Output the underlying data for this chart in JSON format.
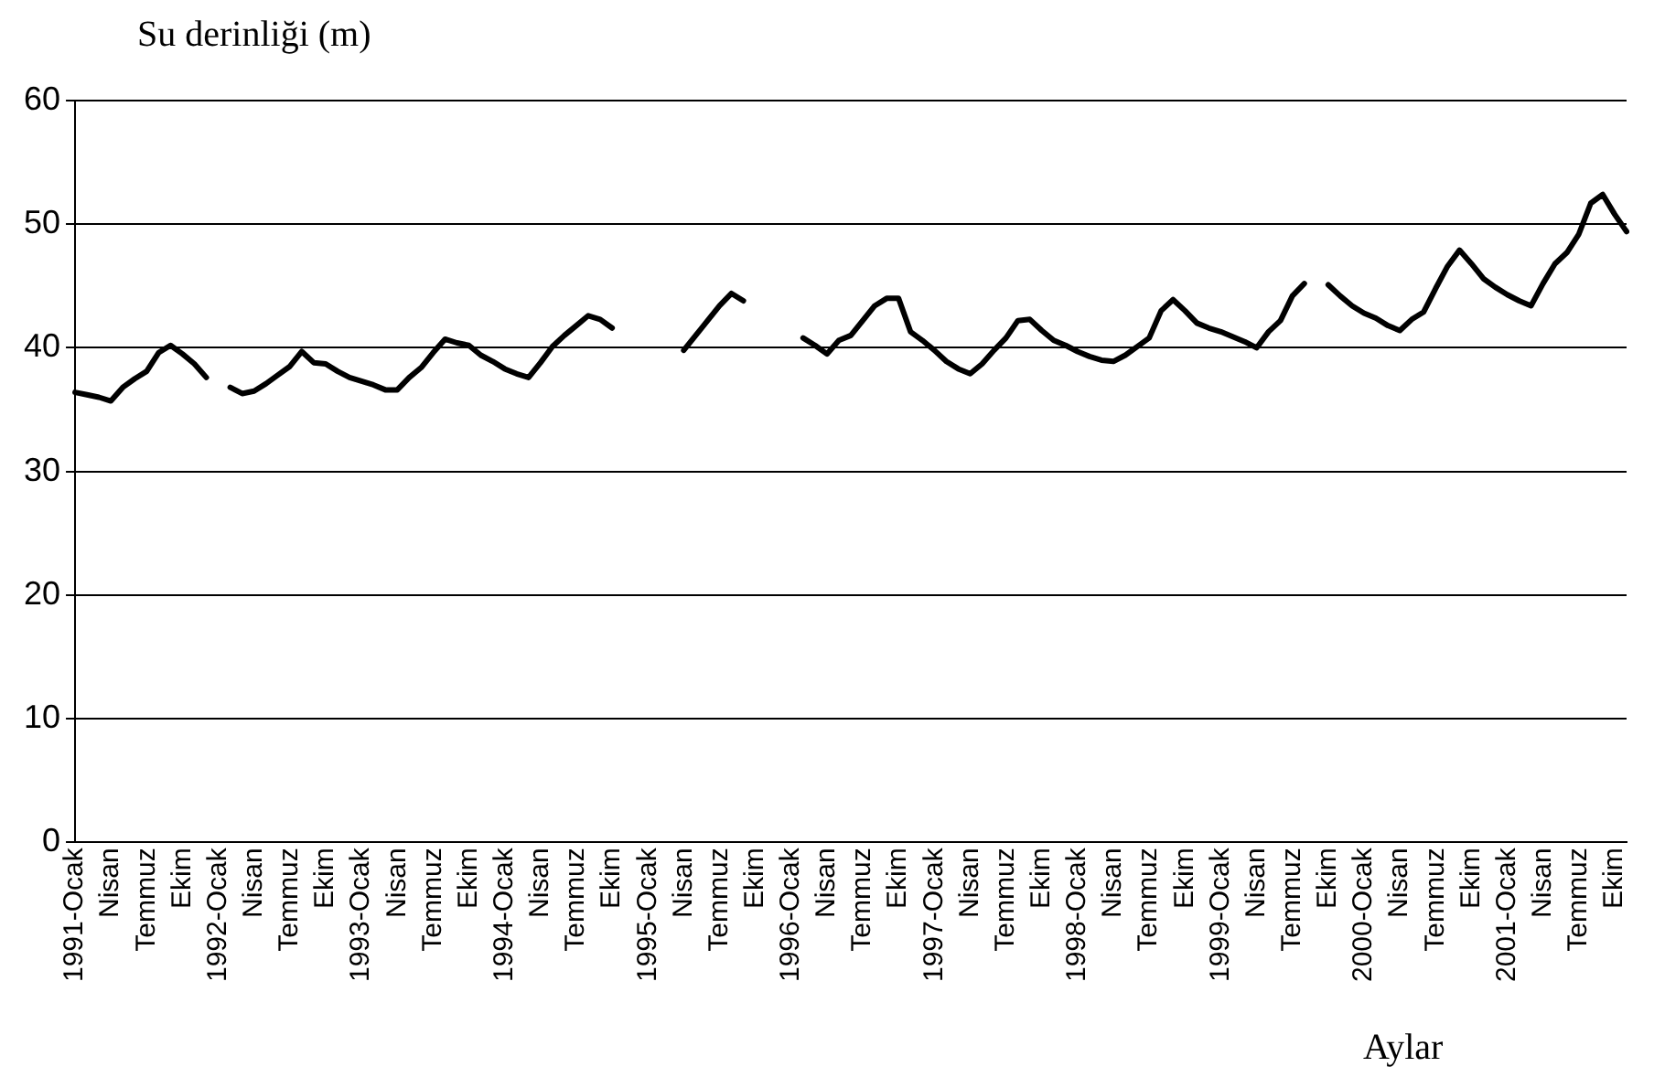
{
  "chart_data": {
    "type": "line",
    "ylabel": "Su derinliği (m)",
    "xlabel": "Aylar",
    "categories": [
      "1991-Ocak",
      null,
      null,
      "Nisan",
      null,
      null,
      "Temmuz",
      null,
      null,
      "Ekim",
      null,
      null,
      "1992-Ocak",
      null,
      null,
      "Nisan",
      null,
      null,
      "Temmuz",
      null,
      null,
      "Ekim",
      null,
      null,
      "1993-Ocak",
      null,
      null,
      "Nisan",
      null,
      null,
      "Temmuz",
      null,
      null,
      "Ekim",
      null,
      null,
      "1994-Ocak",
      null,
      null,
      "Nisan",
      null,
      null,
      "Temmuz",
      null,
      null,
      "Ekim",
      null,
      null,
      "1995-Ocak",
      null,
      null,
      "Nisan",
      null,
      null,
      "Temmuz",
      null,
      null,
      "Ekim",
      null,
      null,
      "1996-Ocak",
      null,
      null,
      "Nisan",
      null,
      null,
      "Temmuz",
      null,
      null,
      "Ekim",
      null,
      null,
      "1997-Ocak",
      null,
      null,
      "Nisan",
      null,
      null,
      "Temmuz",
      null,
      null,
      "Ekim",
      null,
      null,
      "1998-Ocak",
      null,
      null,
      "Nisan",
      null,
      null,
      "Temmuz",
      null,
      null,
      "Ekim",
      null,
      null,
      "1999-Ocak",
      null,
      null,
      "Nisan",
      null,
      null,
      "Temmuz",
      null,
      null,
      "Ekim",
      null,
      null,
      "2000-Ocak",
      null,
      null,
      "Nisan",
      null,
      null,
      "Temmuz",
      null,
      null,
      "Ekim",
      null,
      null,
      "2001-Ocak",
      null,
      null,
      "Nisan",
      null,
      null,
      "Temmuz",
      null,
      null,
      "Ekim",
      null
    ],
    "series": [
      {
        "color": "#000000",
        "values": [
          36.4,
          36.2,
          36.0,
          35.7,
          36.8,
          37.5,
          38.1,
          39.6,
          40.2,
          39.5,
          38.7,
          37.6,
          null,
          36.8,
          36.3,
          36.5,
          37.1,
          37.8,
          38.5,
          39.7,
          38.8,
          38.7,
          38.1,
          37.6,
          37.3,
          37.0,
          36.6,
          36.6,
          37.6,
          38.4,
          39.6,
          40.7,
          40.4,
          40.2,
          39.4,
          38.9,
          38.3,
          37.9,
          37.6,
          38.8,
          40.1,
          41.0,
          41.8,
          42.6,
          42.3,
          41.6,
          null,
          null,
          null,
          null,
          null,
          39.8,
          41.0,
          42.2,
          43.4,
          44.4,
          43.8,
          null,
          null,
          null,
          null,
          40.8,
          40.2,
          39.5,
          40.6,
          41.0,
          42.2,
          43.4,
          44.0,
          44.0,
          41.3,
          40.6,
          39.8,
          38.9,
          38.3,
          37.9,
          38.7,
          39.8,
          40.8,
          42.2,
          42.3,
          41.4,
          40.6,
          40.2,
          39.7,
          39.3,
          39.0,
          38.9,
          39.4,
          40.1,
          40.8,
          43.0,
          43.9,
          43.0,
          42.0,
          41.6,
          41.3,
          40.9,
          40.5,
          40.0,
          41.3,
          42.2,
          44.2,
          45.2,
          null,
          45.1,
          44.2,
          43.4,
          42.8,
          42.4,
          41.8,
          41.4,
          42.3,
          42.9,
          44.8,
          46.6,
          47.9,
          46.8,
          45.6,
          44.9,
          44.3,
          43.8,
          43.4,
          45.2,
          46.8,
          47.7,
          49.2,
          51.7,
          52.4,
          50.8,
          49.4
        ]
      }
    ],
    "ylim": [
      0,
      60
    ],
    "yticks": [
      0,
      10,
      20,
      30,
      40,
      50,
      60
    ],
    "grid": "y",
    "legend": false,
    "marker": "none",
    "line_style": "solid"
  }
}
